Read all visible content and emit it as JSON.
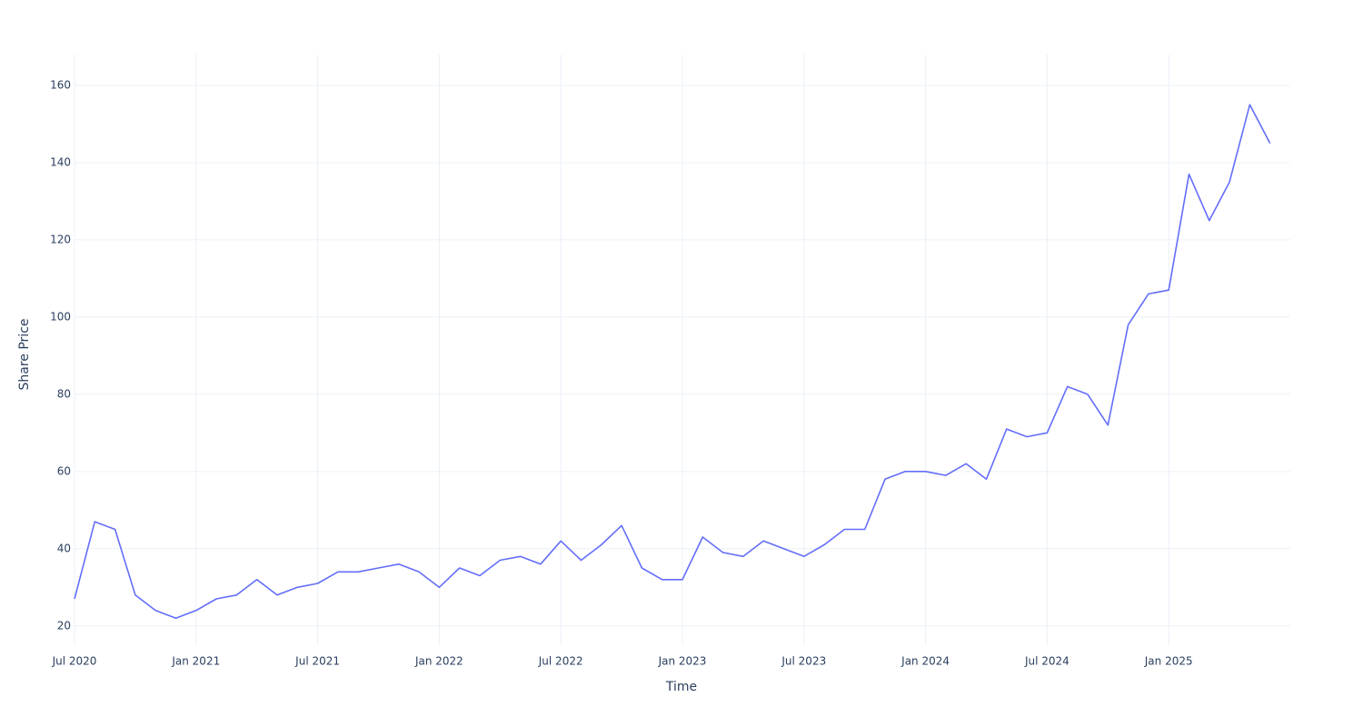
{
  "chart_data": {
    "type": "line",
    "x_label": "Time",
    "y_label": "Share Price",
    "x": [
      "2020-07",
      "2020-08",
      "2020-09",
      "2020-10",
      "2020-11",
      "2020-12",
      "2021-01",
      "2021-02",
      "2021-03",
      "2021-04",
      "2021-05",
      "2021-06",
      "2021-07",
      "2021-08",
      "2021-09",
      "2021-10",
      "2021-11",
      "2021-12",
      "2022-01",
      "2022-02",
      "2022-03",
      "2022-04",
      "2022-05",
      "2022-06",
      "2022-07",
      "2022-08",
      "2022-09",
      "2022-10",
      "2022-11",
      "2022-12",
      "2023-01",
      "2023-02",
      "2023-03",
      "2023-04",
      "2023-05",
      "2023-06",
      "2023-07",
      "2023-08",
      "2023-09",
      "2023-10",
      "2023-11",
      "2023-12",
      "2024-01",
      "2024-02",
      "2024-03",
      "2024-04",
      "2024-05",
      "2024-06",
      "2024-07",
      "2024-08",
      "2024-09",
      "2024-10",
      "2024-11",
      "2024-12",
      "2025-01",
      "2025-02",
      "2025-03",
      "2025-04",
      "2025-05",
      "2025-06"
    ],
    "values": [
      27,
      47,
      45,
      28,
      24,
      22,
      24,
      27,
      28,
      32,
      28,
      30,
      31,
      34,
      34,
      35,
      36,
      34,
      30,
      35,
      33,
      37,
      38,
      36,
      42,
      37,
      41,
      46,
      35,
      32,
      32,
      43,
      39,
      38,
      42,
      40,
      38,
      41,
      45,
      45,
      58,
      60,
      60,
      59,
      62,
      58,
      71,
      69,
      70,
      82,
      80,
      72,
      98,
      106,
      107,
      137,
      125,
      135,
      155,
      145
    ],
    "color": "#636efa",
    "xlim": [
      "2020-07",
      "2025-07"
    ],
    "xticks": [
      {
        "value": "2020-07",
        "label": "Jul 2020"
      },
      {
        "value": "2021-01",
        "label": "Jan 2021"
      },
      {
        "value": "2021-07",
        "label": "Jul 2021"
      },
      {
        "value": "2022-01",
        "label": "Jan 2022"
      },
      {
        "value": "2022-07",
        "label": "Jul 2022"
      },
      {
        "value": "2023-01",
        "label": "Jan 2023"
      },
      {
        "value": "2023-07",
        "label": "Jul 2023"
      },
      {
        "value": "2024-01",
        "label": "Jan 2024"
      },
      {
        "value": "2024-07",
        "label": "Jul 2024"
      },
      {
        "value": "2025-01",
        "label": "Jan 2025"
      }
    ],
    "ylim": [
      15,
      168
    ],
    "yticks": [
      20,
      40,
      60,
      80,
      100,
      120,
      140,
      160
    ],
    "grid": true
  }
}
